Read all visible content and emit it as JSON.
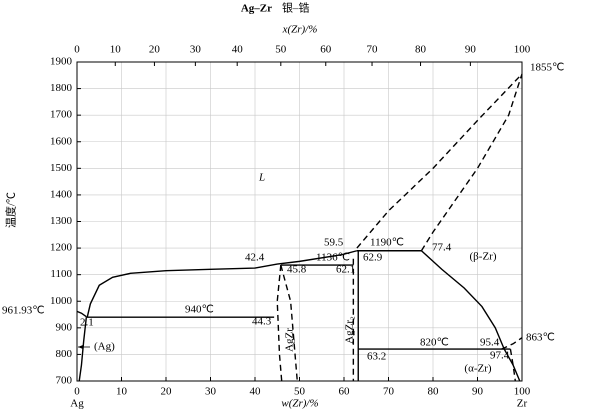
{
  "chart_data": {
    "type": "line",
    "title": "Ag–Zr",
    "subtitle": "银–锆",
    "xlabel": "w(Zr)/%",
    "x2label": "x(Zr)/%",
    "ylabel": "温度/℃",
    "left_element": "Ag",
    "right_element": "Zr",
    "xlim": [
      0,
      100
    ],
    "ylim": [
      700,
      1900
    ],
    "xticks": [
      0,
      10,
      20,
      30,
      40,
      50,
      60,
      70,
      80,
      90,
      100
    ],
    "x2ticks": [
      0,
      {
        "value": 8.6,
        "label": "10"
      },
      {
        "value": 17.4,
        "label": "20"
      },
      {
        "value": 26.6,
        "label": "30"
      },
      {
        "value": 36.0,
        "label": "40"
      },
      {
        "value": 45.8,
        "label": "50"
      },
      {
        "value": 55.9,
        "label": "60"
      },
      {
        "value": 66.3,
        "label": "70"
      },
      {
        "value": 77.2,
        "label": "80"
      },
      {
        "value": 88.4,
        "label": "90"
      },
      100
    ],
    "yticks": [
      700,
      800,
      900,
      1000,
      1100,
      1200,
      1300,
      1400,
      1500,
      1600,
      1700,
      1800,
      1900
    ],
    "grid": true,
    "series": [
      {
        "color": "#000",
        "dashed": false,
        "x": [
          0,
          1,
          2.1
        ],
        "values": [
          961.93,
          955,
          942
        ]
      },
      {
        "color": "#000",
        "dashed": false,
        "x": [
          2.3,
          3,
          5,
          8,
          12,
          20,
          30,
          40,
          45,
          50,
          59.5,
          62.9
        ],
        "values": [
          940,
          990,
          1060,
          1090,
          1105,
          1115,
          1120,
          1125,
          1140,
          1150,
          1175,
          1190
        ]
      },
      {
        "color": "#000",
        "dashed": false,
        "x": [
          62.9,
          77.4
        ],
        "values": [
          1190,
          1190
        ]
      },
      {
        "color": "#000",
        "dashed": false,
        "x": [
          77.4,
          82,
          87,
          91,
          94,
          96,
          98,
          99.5
        ],
        "values": [
          1190,
          1120,
          1050,
          980,
          900,
          820,
          760,
          700
        ]
      },
      {
        "color": "#000",
        "dashed": true,
        "x": [
          62.9,
          70,
          80,
          90,
          100
        ],
        "values": [
          1200,
          1340,
          1500,
          1680,
          1855
        ]
      },
      {
        "color": "#000",
        "dashed": true,
        "x": [
          77.4,
          80,
          90,
          97,
          100
        ],
        "values": [
          1190,
          1260,
          1500,
          1700,
          1855
        ]
      },
      {
        "color": "#000",
        "dashed": false,
        "x": [
          2.1,
          44.3
        ],
        "values": [
          940,
          940
        ]
      },
      {
        "color": "#000",
        "dashed": false,
        "x": [
          45.8,
          62.1
        ],
        "values": [
          1136,
          1136
        ]
      },
      {
        "color": "#000",
        "dashed": true,
        "x": [
          45.8,
          45,
          45.5,
          46
        ],
        "values": [
          1136,
          1000,
          800,
          700
        ]
      },
      {
        "color": "#000",
        "dashed": true,
        "x": [
          45.8,
          48,
          49,
          49.5
        ],
        "values": [
          1136,
          1000,
          800,
          700
        ]
      },
      {
        "color": "#000",
        "dashed": true,
        "x": [
          62.1,
          62.1
        ],
        "values": [
          1160,
          700
        ]
      },
      {
        "color": "#000",
        "dashed": false,
        "x": [
          63.2,
          63.2
        ],
        "values": [
          1190,
          700
        ]
      },
      {
        "color": "#000",
        "dashed": false,
        "x": [
          63.2,
          97.4
        ],
        "values": [
          820,
          820
        ]
      },
      {
        "color": "#000",
        "dashed": true,
        "x": [
          95.4,
          98,
          100
        ],
        "values": [
          820,
          840,
          863
        ]
      },
      {
        "color": "#000",
        "dashed": true,
        "x": [
          97.4,
          98,
          98.5
        ],
        "values": [
          820,
          760,
          700
        ]
      },
      {
        "color": "#000",
        "dashed": false,
        "x": [
          2.1,
          1.5,
          1,
          0.5
        ],
        "values": [
          940,
          850,
          760,
          700
        ]
      }
    ],
    "annotations": [
      "961.93℃",
      "2.1",
      "940℃",
      "44.3",
      "42.4",
      "45.8",
      "1136℃",
      "62.1",
      "62.9",
      "59.5",
      "1190℃",
      "77.4",
      "820℃",
      "63.2",
      "95.4",
      "97.4",
      "863℃",
      "1855℃"
    ],
    "phase_labels": [
      "L",
      "(β-Zr)",
      "(α-Zr)",
      "(Ag)",
      "AgZr",
      "AgZr₂"
    ]
  }
}
